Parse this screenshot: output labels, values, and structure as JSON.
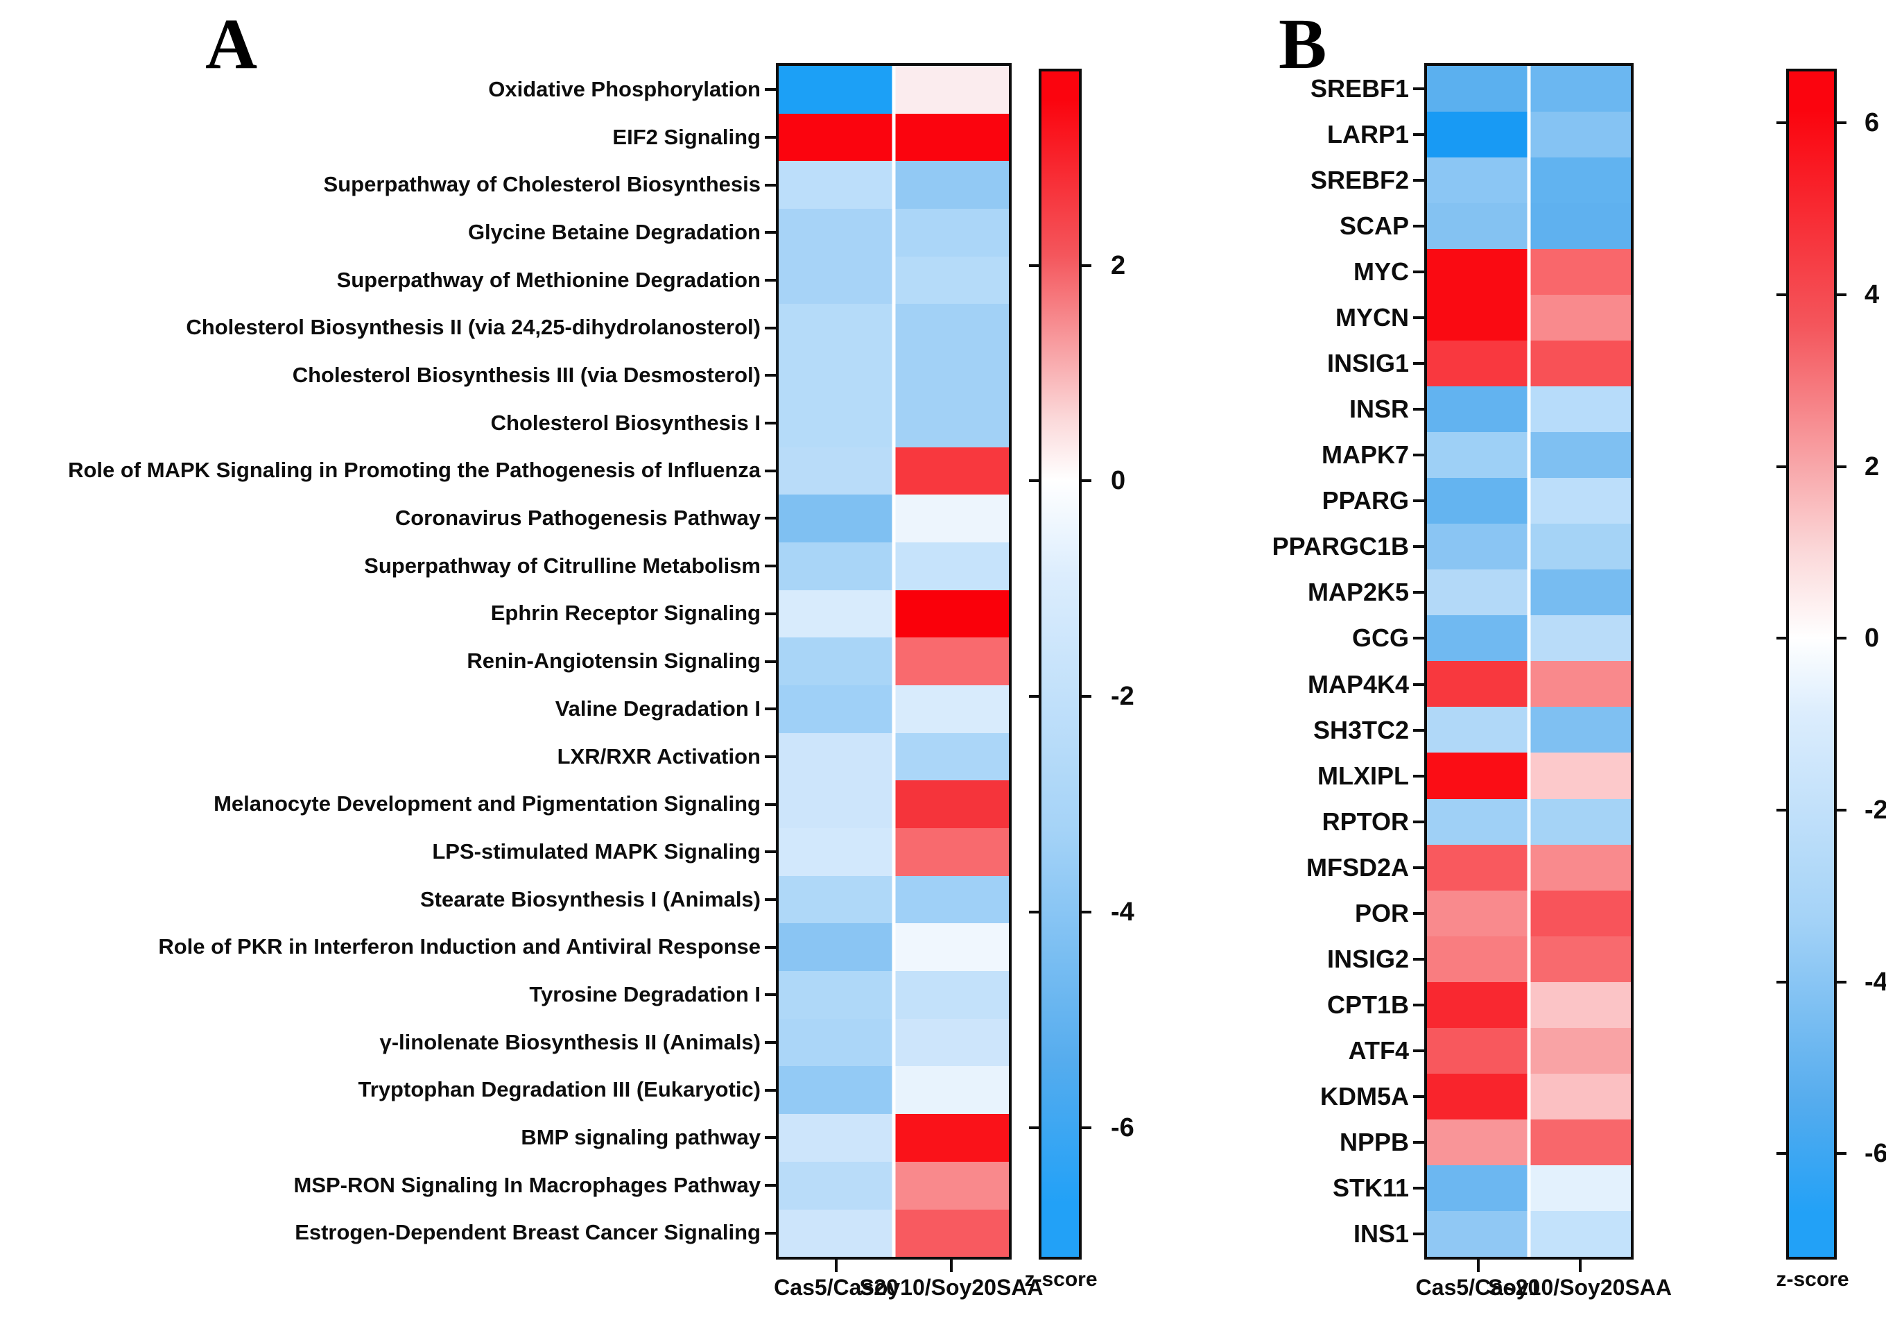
{
  "chart_data": [
    {
      "type": "heatmap",
      "title": "A",
      "categories": [
        "Cas5/Cas20",
        "Soy10/Soy20SAA"
      ],
      "colorbar": {
        "label": "z-score",
        "ticks": [
          2,
          0,
          -2,
          -4,
          -6
        ],
        "vmax": 3.8,
        "vmin": -7.2
      },
      "colormap": {
        "max_color": "#fb040e",
        "mid_color": "#ffffff",
        "min_color": "#22a1f7"
      },
      "rows": [
        {
          "label": "Oxidative Phosphorylation",
          "values": [
            -6.8,
            0.3
          ],
          "colors": [
            "#1ca0f6",
            "#fbecee"
          ]
        },
        {
          "label": "EIF2 Signaling",
          "values": [
            3.6,
            3.6
          ],
          "colors": [
            "#fb040e",
            "#fb040e"
          ]
        },
        {
          "label": "Superpathway of Cholesterol Biosynthesis",
          "values": [
            -1.7,
            -2.9
          ],
          "colors": [
            "#bcdefa",
            "#92c9f4"
          ]
        },
        {
          "label": "Glycine Betaine Degradation",
          "values": [
            -2.4,
            -2.2
          ],
          "colors": [
            "#a7d3f7",
            "#abd6f8"
          ]
        },
        {
          "label": "Superpathway of Methionine Degradation",
          "values": [
            -2.4,
            -1.9
          ],
          "colors": [
            "#a7d3f7",
            "#b5dbf9"
          ]
        },
        {
          "label": "Cholesterol Biosynthesis II (via 24,25-dihydrolanosterol)",
          "values": [
            -1.9,
            -2.5
          ],
          "colors": [
            "#b5dbf9",
            "#a2d1f6"
          ]
        },
        {
          "label": "Cholesterol Biosynthesis III (via Desmosterol)",
          "values": [
            -1.9,
            -2.5
          ],
          "colors": [
            "#b5dbf9",
            "#a2d1f6"
          ]
        },
        {
          "label": "Cholesterol Biosynthesis I",
          "values": [
            -1.9,
            -2.5
          ],
          "colors": [
            "#b5dbf9",
            "#a2d1f6"
          ]
        },
        {
          "label": "Role of MAPK Signaling in Promoting the Pathogenesis of Influenza",
          "values": [
            -1.8,
            2.9
          ],
          "colors": [
            "#b9dcf9",
            "#f8383e"
          ]
        },
        {
          "label": "Coronavirus Pathogenesis Pathway",
          "values": [
            -3.5,
            -0.4
          ],
          "colors": [
            "#7fc0f2",
            "#edf5fd"
          ]
        },
        {
          "label": "Superpathway of Citrulline Metabolism",
          "values": [
            -2.3,
            -1.3
          ],
          "colors": [
            "#a9d5f7",
            "#c6e3fb"
          ]
        },
        {
          "label": "Ephrin Receptor Signaling",
          "values": [
            -1.0,
            3.7
          ],
          "colors": [
            "#d8ebfc",
            "#fa000a"
          ]
        },
        {
          "label": "Renin-Angiotensin Signaling",
          "values": [
            -2.3,
            2.2
          ],
          "colors": [
            "#a9d5f7",
            "#f96a6e"
          ]
        },
        {
          "label": "Valine Degradation I",
          "values": [
            -2.7,
            -0.9
          ],
          "colors": [
            "#9fd0f7",
            "#d8ebfc"
          ]
        },
        {
          "label": "LXR/RXR Activation",
          "values": [
            -1.4,
            -2.2
          ],
          "colors": [
            "#cde5fb",
            "#abd6f8"
          ]
        },
        {
          "label": "Melanocyte Development and Pigmentation Signaling",
          "values": [
            -1.4,
            3.0
          ],
          "colors": [
            "#cde5fb",
            "#f5343b"
          ]
        },
        {
          "label": "LPS-stimulated MAPK Signaling",
          "values": [
            -1.2,
            2.2
          ],
          "colors": [
            "#d2e8fc",
            "#f86a6e"
          ]
        },
        {
          "label": "Stearate Biosynthesis I (Animals)",
          "values": [
            -2.1,
            -2.7
          ],
          "colors": [
            "#afd8f8",
            "#9fd0f7"
          ]
        },
        {
          "label": "Role of PKR in Interferon Induction and Antiviral Response",
          "values": [
            -3.3,
            -0.3
          ],
          "colors": [
            "#8ac5f3",
            "#f0f7fe"
          ]
        },
        {
          "label": "Tyrosine Degradation I",
          "values": [
            -2.1,
            -1.4
          ],
          "colors": [
            "#afd8f8",
            "#c3e1fa"
          ]
        },
        {
          "label": "γ-linolenate Biosynthesis II (Animals)",
          "values": [
            -2.2,
            -1.4
          ],
          "colors": [
            "#abd6f8",
            "#cde5fb"
          ]
        },
        {
          "label": "Tryptophan Degradation III (Eukaryotic)",
          "values": [
            -3.0,
            -0.5
          ],
          "colors": [
            "#93caf5",
            "#e8f3fd"
          ]
        },
        {
          "label": "BMP signaling pathway",
          "values": [
            -1.4,
            3.5
          ],
          "colors": [
            "#cde5fb",
            "#fa1219"
          ]
        },
        {
          "label": "MSP-RON Signaling In Macrophages Pathway",
          "values": [
            -1.8,
            1.9
          ],
          "colors": [
            "#b9dcf9",
            "#f9898c"
          ]
        },
        {
          "label": "Estrogen-Dependent Breast Cancer Signaling",
          "values": [
            -1.4,
            2.5
          ],
          "colors": [
            "#cde5fb",
            "#f85a60"
          ]
        }
      ]
    },
    {
      "type": "heatmap",
      "title": "B",
      "categories": [
        "Cas5/Cas20",
        "Soy10/Soy20SAA"
      ],
      "colorbar": {
        "label": "z-score",
        "ticks": [
          6,
          4,
          2,
          0,
          -2,
          -4,
          -6
        ],
        "vmax": 6.6,
        "vmin": -7.2
      },
      "colormap": {
        "max_color": "#fb040e",
        "mid_color": "#ffffff",
        "min_color": "#22a1f7"
      },
      "rows": [
        {
          "label": "SREBF1",
          "values": [
            -4.5,
            -4.2
          ],
          "colors": [
            "#5bb0ef",
            "#6bb7f1"
          ]
        },
        {
          "label": "LARP1",
          "values": [
            -6.8,
            -3.6
          ],
          "colors": [
            "#189af4",
            "#85c3f3"
          ]
        },
        {
          "label": "SREBF2",
          "values": [
            -3.4,
            -4.4
          ],
          "colors": [
            "#8bc6f4",
            "#61b3f0"
          ]
        },
        {
          "label": "SCAP",
          "values": [
            -3.6,
            -4.5
          ],
          "colors": [
            "#84c2f2",
            "#5fb1ef"
          ]
        },
        {
          "label": "MYC",
          "values": [
            6.4,
            3.9
          ],
          "colors": [
            "#fa0a12",
            "#f9676b"
          ]
        },
        {
          "label": "MYCN",
          "values": [
            6.4,
            3.0
          ],
          "colors": [
            "#fa0a12",
            "#f98a8d"
          ]
        },
        {
          "label": "INSIG1",
          "values": [
            5.0,
            4.5
          ],
          "colors": [
            "#f9383f",
            "#f85156"
          ]
        },
        {
          "label": "INSR",
          "values": [
            -4.4,
            -2.1
          ],
          "colors": [
            "#62b3f0",
            "#b7dcfa"
          ]
        },
        {
          "label": "MAPK7",
          "values": [
            -2.8,
            -3.8
          ],
          "colors": [
            "#9ed0f6",
            "#7fc0f2"
          ]
        },
        {
          "label": "PPARG",
          "values": [
            -4.3,
            -2.0
          ],
          "colors": [
            "#64b4f0",
            "#bcdefa"
          ]
        },
        {
          "label": "PPARGC1B",
          "values": [
            -3.4,
            -2.6
          ],
          "colors": [
            "#8ac5f3",
            "#a5d3f6"
          ]
        },
        {
          "label": "MAP2K5",
          "values": [
            -2.2,
            -3.9
          ],
          "colors": [
            "#b3d9f8",
            "#77bcf1"
          ]
        },
        {
          "label": "GCG",
          "values": [
            -4.1,
            -2.0
          ],
          "colors": [
            "#70b9f1",
            "#b9dcf9"
          ]
        },
        {
          "label": "MAP4K4",
          "values": [
            5.0,
            3.0
          ],
          "colors": [
            "#f8383e",
            "#f9898c"
          ]
        },
        {
          "label": "SH3TC2",
          "values": [
            -2.3,
            -3.8
          ],
          "colors": [
            "#b0d8f8",
            "#7fc0f2"
          ]
        },
        {
          "label": "MLXIPL",
          "values": [
            6.3,
            1.4
          ],
          "colors": [
            "#fb0d15",
            "#fcc9cb"
          ]
        },
        {
          "label": "RPTOR",
          "values": [
            -2.8,
            -2.6
          ],
          "colors": [
            "#9fd0f6",
            "#a5d3f6"
          ]
        },
        {
          "label": "MFSD2A",
          "values": [
            4.2,
            3.0
          ],
          "colors": [
            "#f9595e",
            "#f98a8d"
          ]
        },
        {
          "label": "POR",
          "values": [
            3.0,
            4.3
          ],
          "colors": [
            "#f98a8d",
            "#f8545a"
          ]
        },
        {
          "label": "INSIG2",
          "values": [
            3.3,
            3.7
          ],
          "colors": [
            "#f97d80",
            "#f86a6e"
          ]
        },
        {
          "label": "CPT1B",
          "values": [
            5.5,
            1.5
          ],
          "colors": [
            "#f92830",
            "#fbc4c6"
          ]
        },
        {
          "label": "ATF4",
          "values": [
            4.2,
            2.4
          ],
          "colors": [
            "#f8585d",
            "#f9a3a5"
          ]
        },
        {
          "label": "KDM5A",
          "values": [
            5.6,
            1.6
          ],
          "colors": [
            "#f9242c",
            "#fbc0c2"
          ]
        },
        {
          "label": "NPPB",
          "values": [
            2.8,
            3.8
          ],
          "colors": [
            "#f99598",
            "#f8676b"
          ]
        },
        {
          "label": "STK11",
          "values": [
            -4.1,
            -0.8
          ],
          "colors": [
            "#6cb7f1",
            "#e3f1fd"
          ]
        },
        {
          "label": "INS1",
          "values": [
            -3.2,
            -1.8
          ],
          "colors": [
            "#90c8f4",
            "#c3e2fb"
          ]
        }
      ]
    }
  ]
}
